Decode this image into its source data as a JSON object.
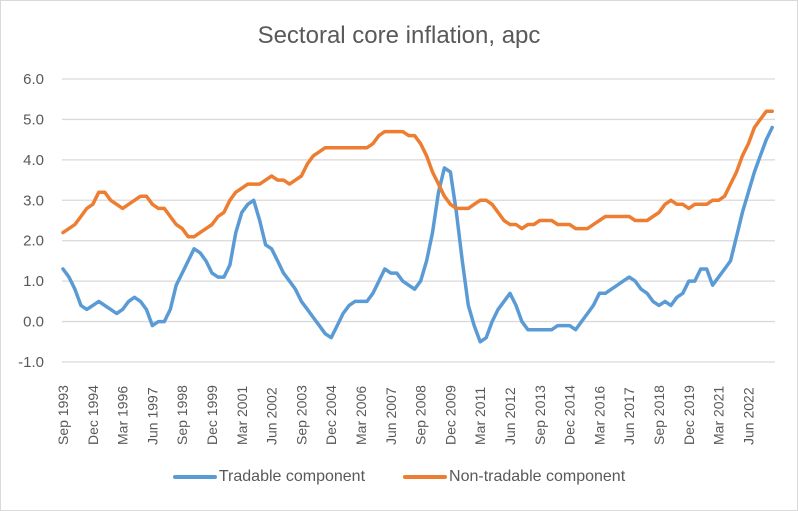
{
  "chart_data": {
    "type": "line",
    "title": "Sectoral core inflation, apc",
    "xlabel": "",
    "ylabel": "",
    "ylim": [
      -1.0,
      6.0
    ],
    "yticks": [
      "6.0",
      "5.0",
      "4.0",
      "3.0",
      "2.0",
      "1.0",
      "0.0",
      "-1.0"
    ],
    "ytick_values": [
      6,
      5,
      4,
      3,
      2,
      1,
      0,
      -1
    ],
    "grid": true,
    "legend_position": "bottom",
    "x_tick_labels": [
      "Sep 1993",
      "Dec 1994",
      "Mar 1996",
      "Jun 1997",
      "Sep 1998",
      "Dec 1999",
      "Mar 2001",
      "Jun 2002",
      "Sep 2003",
      "Dec 2004",
      "Mar 2006",
      "Jun 2007",
      "Sep 2008",
      "Dec 2009",
      "Mar 2011",
      "Jun 2012",
      "Sep 2013",
      "Dec 2014",
      "Mar 2016",
      "Jun 2017",
      "Sep 2018",
      "Dec 2019",
      "Mar 2021",
      "Jun 2022"
    ],
    "x_tick_every_quarters": 5,
    "x_start": "Sep 1993",
    "x_frequency": "quarterly",
    "series": [
      {
        "name": "Tradable component",
        "color": "#5b9bd5",
        "values": [
          1.3,
          1.1,
          0.8,
          0.4,
          0.3,
          0.4,
          0.5,
          0.4,
          0.3,
          0.2,
          0.3,
          0.5,
          0.6,
          0.5,
          0.3,
          -0.1,
          0.0,
          0.0,
          0.3,
          0.9,
          1.2,
          1.5,
          1.8,
          1.7,
          1.5,
          1.2,
          1.1,
          1.1,
          1.4,
          2.2,
          2.7,
          2.9,
          3.0,
          2.5,
          1.9,
          1.8,
          1.5,
          1.2,
          1.0,
          0.8,
          0.5,
          0.3,
          0.1,
          -0.1,
          -0.3,
          -0.4,
          -0.1,
          0.2,
          0.4,
          0.5,
          0.5,
          0.5,
          0.7,
          1.0,
          1.3,
          1.2,
          1.2,
          1.0,
          0.9,
          0.8,
          1.0,
          1.5,
          2.2,
          3.2,
          3.8,
          3.7,
          2.7,
          1.5,
          0.4,
          -0.1,
          -0.5,
          -0.4,
          0.0,
          0.3,
          0.5,
          0.7,
          0.4,
          0.0,
          -0.2,
          -0.2,
          -0.2,
          -0.2,
          -0.2,
          -0.1,
          -0.1,
          -0.1,
          -0.2,
          0.0,
          0.2,
          0.4,
          0.7,
          0.7,
          0.8,
          0.9,
          1.0,
          1.1,
          1.0,
          0.8,
          0.7,
          0.5,
          0.4,
          0.5,
          0.4,
          0.6,
          0.7,
          1.0,
          1.0,
          1.3,
          1.3,
          0.9,
          1.1,
          1.3,
          1.5,
          2.1,
          2.7,
          3.2,
          3.7,
          4.1,
          4.5,
          4.8
        ]
      },
      {
        "name": "Non-tradable component",
        "color": "#ed7d31",
        "values": [
          2.2,
          2.3,
          2.4,
          2.6,
          2.8,
          2.9,
          3.2,
          3.2,
          3.0,
          2.9,
          2.8,
          2.9,
          3.0,
          3.1,
          3.1,
          2.9,
          2.8,
          2.8,
          2.6,
          2.4,
          2.3,
          2.1,
          2.1,
          2.2,
          2.3,
          2.4,
          2.6,
          2.7,
          3.0,
          3.2,
          3.3,
          3.4,
          3.4,
          3.4,
          3.5,
          3.6,
          3.5,
          3.5,
          3.4,
          3.5,
          3.6,
          3.9,
          4.1,
          4.2,
          4.3,
          4.3,
          4.3,
          4.3,
          4.3,
          4.3,
          4.3,
          4.3,
          4.4,
          4.6,
          4.7,
          4.7,
          4.7,
          4.7,
          4.6,
          4.6,
          4.4,
          4.1,
          3.7,
          3.4,
          3.1,
          2.9,
          2.8,
          2.8,
          2.8,
          2.9,
          3.0,
          3.0,
          2.9,
          2.7,
          2.5,
          2.4,
          2.4,
          2.3,
          2.4,
          2.4,
          2.5,
          2.5,
          2.5,
          2.4,
          2.4,
          2.4,
          2.3,
          2.3,
          2.3,
          2.4,
          2.5,
          2.6,
          2.6,
          2.6,
          2.6,
          2.6,
          2.5,
          2.5,
          2.5,
          2.6,
          2.7,
          2.9,
          3.0,
          2.9,
          2.9,
          2.8,
          2.9,
          2.9,
          2.9,
          3.0,
          3.0,
          3.1,
          3.4,
          3.7,
          4.1,
          4.4,
          4.8,
          5.0,
          5.2,
          5.2
        ]
      }
    ]
  },
  "legend": {
    "items": [
      {
        "label": "Tradable component",
        "color": "#5b9bd5"
      },
      {
        "label": "Non-tradable component",
        "color": "#ed7d31"
      }
    ]
  }
}
